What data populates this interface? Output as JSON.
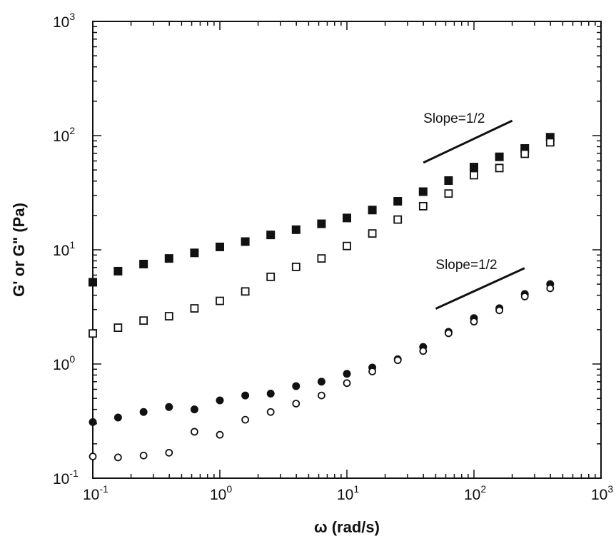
{
  "chart_data": {
    "type": "scatter",
    "title": "",
    "xlabel": "ω (rad/s)",
    "ylabel": "G' or G\" (Pa)",
    "xscale": "log",
    "yscale": "log",
    "xlim": [
      0.1,
      1000
    ],
    "ylim": [
      0.1,
      1000
    ],
    "grid": false,
    "legend": "none",
    "x_ticks": [
      {
        "base": "10",
        "exp": "-1",
        "value": 0.1
      },
      {
        "base": "10",
        "exp": "0",
        "value": 1
      },
      {
        "base": "10",
        "exp": "1",
        "value": 10
      },
      {
        "base": "10",
        "exp": "2",
        "value": 100
      },
      {
        "base": "10",
        "exp": "3",
        "value": 1000
      }
    ],
    "y_ticks": [
      {
        "base": "10",
        "exp": "-1",
        "value": 0.1
      },
      {
        "base": "10",
        "exp": "0",
        "value": 1
      },
      {
        "base": "10",
        "exp": "1",
        "value": 10
      },
      {
        "base": "10",
        "exp": "2",
        "value": 100
      },
      {
        "base": "10",
        "exp": "3",
        "value": 1000
      }
    ],
    "x": [
      0.1,
      0.158,
      0.251,
      0.398,
      0.631,
      1.0,
      1.585,
      2.512,
      3.981,
      6.31,
      10.0,
      15.85,
      25.12,
      39.81,
      63.1,
      100.0,
      158.5,
      251.2,
      398.1
    ],
    "series": [
      {
        "marker": "filled-square",
        "values": [
          5.2,
          6.5,
          7.5,
          8.4,
          9.4,
          10.6,
          11.8,
          13.5,
          15.0,
          16.9,
          19.0,
          22.3,
          26.6,
          32.3,
          40.4,
          53.0,
          65.2,
          77.2,
          96.8
        ]
      },
      {
        "marker": "open-square",
        "values": [
          1.85,
          2.08,
          2.4,
          2.62,
          3.07,
          3.57,
          4.32,
          5.8,
          7.09,
          8.4,
          10.8,
          13.9,
          18.4,
          24.1,
          31.1,
          45.0,
          52.0,
          69.3,
          87.3
        ]
      },
      {
        "marker": "filled-circle",
        "values": [
          0.31,
          0.34,
          0.38,
          0.42,
          0.4,
          0.48,
          0.53,
          0.55,
          0.64,
          0.7,
          0.82,
          0.93,
          1.1,
          1.41,
          1.91,
          2.52,
          3.08,
          4.1,
          5.0
        ]
      },
      {
        "marker": "open-circle",
        "values": [
          0.155,
          0.152,
          0.158,
          0.167,
          0.255,
          0.24,
          0.325,
          0.38,
          0.45,
          0.53,
          0.68,
          0.86,
          1.08,
          1.3,
          1.86,
          2.35,
          2.95,
          3.9,
          4.6
        ]
      }
    ],
    "annotations": [
      {
        "text": "Slope=1/2",
        "x": 40,
        "y": 130,
        "line_from": [
          40,
          58
        ],
        "line_to": [
          200,
          135
        ]
      },
      {
        "text": "Slope=1/2",
        "x": 50,
        "y": 6.8,
        "line_from": [
          50,
          3.05
        ],
        "line_to": [
          250,
          6.9
        ]
      }
    ]
  }
}
